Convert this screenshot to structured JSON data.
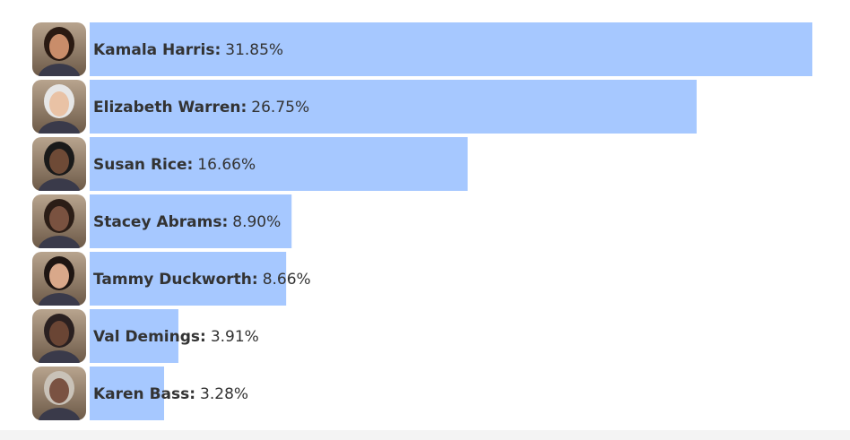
{
  "chart_data": {
    "type": "bar",
    "orientation": "horizontal",
    "categories": [
      "Kamala Harris:",
      "Elizabeth Warren:",
      "Susan Rice:",
      "Stacey Abrams:",
      "Tammy Duckworth:",
      "Val Demings:",
      "Karen Bass:"
    ],
    "values": [
      31.85,
      26.75,
      16.66,
      8.9,
      8.66,
      3.91,
      3.28
    ],
    "value_labels": [
      "31.85%",
      "26.75%",
      "16.66%",
      "8.90%",
      "8.66%",
      "3.91%",
      "3.28%"
    ],
    "color": "#a6c8ff"
  }
}
